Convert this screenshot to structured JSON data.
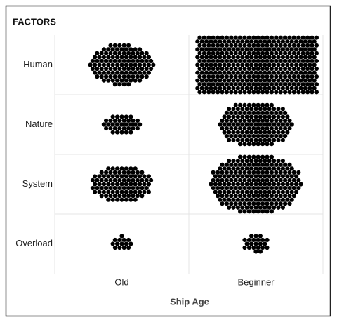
{
  "chart_data": {
    "type": "unit",
    "title": "FACTORS",
    "x_label": "Ship Age",
    "categories": [
      "Old",
      "Beginner"
    ],
    "series": [
      {
        "name": "Human",
        "color": "#000000",
        "values": [
          120,
          430
        ]
      },
      {
        "name": "Nature",
        "color": "#000000",
        "values": [
          35,
          150
        ]
      },
      {
        "name": "System",
        "color": "#000000",
        "values": [
          100,
          245
        ]
      },
      {
        "name": "Overload",
        "color": "#000000",
        "values": [
          14,
          22
        ]
      }
    ]
  }
}
